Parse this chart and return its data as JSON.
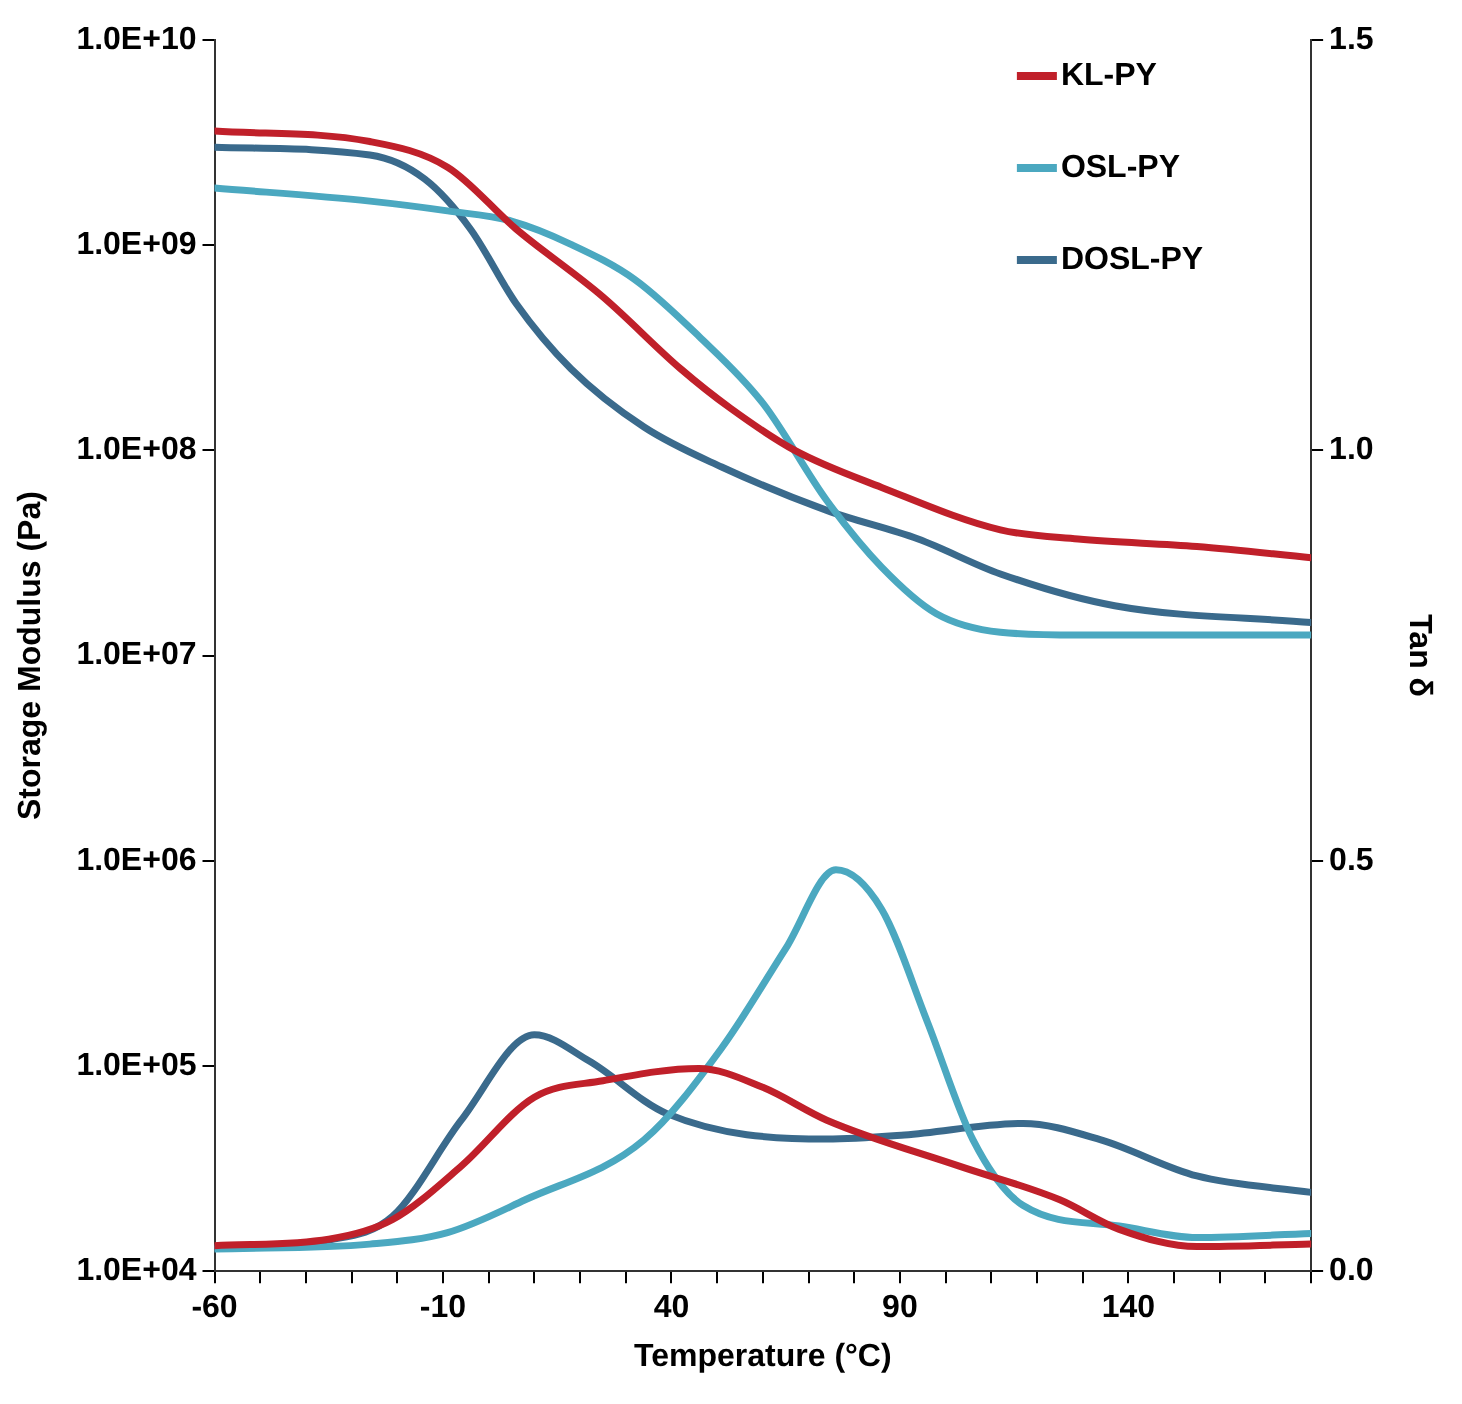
{
  "chart_data": {
    "type": "line",
    "xlabel": "Temperature (°C)",
    "ylabel": "Storage Modulus (Pa)",
    "y2label": "Tan δ",
    "log": "y",
    "grid": false,
    "legend": "top right",
    "marker": "none",
    "line_style": "solid",
    "xlim": [
      -60,
      180
    ],
    "xticks": [
      -60,
      {
        "value": -50,
        "label": null
      },
      {
        "value": -40,
        "label": null
      },
      {
        "value": -30,
        "label": null
      },
      {
        "value": -20,
        "label": null
      },
      -10,
      {
        "value": 0,
        "label": null
      },
      {
        "value": 10,
        "label": null
      },
      {
        "value": 20,
        "label": null
      },
      {
        "value": 30,
        "label": null
      },
      40,
      {
        "value": 50,
        "label": null
      },
      {
        "value": 60,
        "label": null
      },
      {
        "value": 70,
        "label": null
      },
      {
        "value": 80,
        "label": null
      },
      90,
      {
        "value": 100,
        "label": null
      },
      {
        "value": 110,
        "label": null
      },
      {
        "value": 120,
        "label": null
      },
      {
        "value": 130,
        "label": null
      },
      140,
      {
        "value": 150,
        "label": null
      },
      {
        "value": 160,
        "label": null
      },
      {
        "value": 170,
        "label": null
      },
      {
        "value": 180,
        "label": null
      }
    ],
    "ylim": [
      10000,
      10000000000
    ],
    "yticks": [
      {
        "value": 10000,
        "label": "1.0E+04"
      },
      {
        "value": 100000,
        "label": "1.0E+05"
      },
      {
        "value": 1000000,
        "label": "1.0E+06"
      },
      {
        "value": 10000000,
        "label": "1.0E+07"
      },
      {
        "value": 100000000,
        "label": "1.0E+08"
      },
      {
        "value": 1000000000,
        "label": "1.0E+09"
      },
      {
        "value": 10000000000,
        "label": "1.0E+10"
      }
    ],
    "y2lim": [
      0,
      1.5
    ],
    "y2ticks": [
      {
        "value": 0,
        "label": "0.0"
      },
      0.5,
      {
        "value": 1,
        "label": "1.0"
      },
      1.5
    ],
    "series": [
      {
        "name": "KL-PY",
        "color": "#c0202a",
        "x": [
          -60,
          -26,
          -9,
          6,
          25,
          42,
          53,
          67,
          86,
          112,
          129,
          155,
          180
        ],
        "values": [
          3600000000,
          3200000000,
          2400000000,
          1200000000,
          560000000,
          250000000,
          160000000,
          100000000,
          66000000,
          41000000,
          37000000,
          34000000,
          30000000
        ]
      },
      {
        "name": "OSL-PY",
        "color": "#4ba8c0",
        "x": [
          -60,
          -26,
          -9,
          5,
          18,
          32,
          46,
          60,
          74,
          86,
          98,
          112,
          129,
          180
        ],
        "values": [
          1900000000,
          1640000000,
          1470000000,
          1310000000,
          1010000000,
          680000000,
          360000000,
          170000000,
          57000000,
          27000000,
          16000000,
          13000000,
          12600000,
          12600000
        ]
      },
      {
        "name": "DOSL-PY",
        "color": "#3a6a8c",
        "x": [
          -60,
          -26,
          -14,
          -4,
          6,
          18,
          34,
          51,
          74,
          94,
          112,
          137,
          180
        ],
        "values": [
          3000000000,
          2750000000,
          2100000000,
          1200000000,
          520000000,
          250000000,
          130000000,
          83000000,
          51000000,
          37000000,
          25000000,
          17500000,
          14500000
        ]
      },
      {
        "color": "#c0202a",
        "axis": "y2",
        "x": [
          -60,
          -35,
          -21,
          -6,
          10,
          25,
          46,
          60,
          74,
          103,
          125,
          138,
          155,
          180
        ],
        "values": [
          0.031,
          0.039,
          0.063,
          0.128,
          0.212,
          0.232,
          0.247,
          0.224,
          0.184,
          0.128,
          0.087,
          0.051,
          0.03,
          0.033
        ]
      },
      {
        "color": "#4ba8c0",
        "axis": "y2",
        "x": [
          -60,
          -26,
          -9,
          8,
          34,
          51,
          65,
          76,
          86,
          96,
          106,
          117,
          138,
          155,
          180
        ],
        "values": [
          0.027,
          0.033,
          0.047,
          0.087,
          0.16,
          0.272,
          0.393,
          0.489,
          0.441,
          0.304,
          0.16,
          0.08,
          0.055,
          0.041,
          0.046
        ]
      },
      {
        "color": "#3a6a8c",
        "axis": "y2",
        "x": [
          -60,
          -35,
          -21,
          -6,
          10,
          22,
          39,
          74,
          91,
          117,
          134,
          155,
          180
        ],
        "values": [
          0.029,
          0.038,
          0.067,
          0.184,
          0.288,
          0.256,
          0.192,
          0.161,
          0.166,
          0.18,
          0.16,
          0.116,
          0.096
        ]
      }
    ]
  }
}
